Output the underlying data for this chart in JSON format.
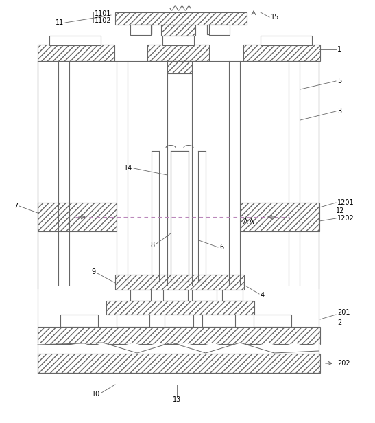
{
  "line_color": "#666666",
  "hatch_color": "#666666",
  "dashed_color": "#bb88bb",
  "fig_width": 5.47,
  "fig_height": 6.16,
  "dpi": 100
}
